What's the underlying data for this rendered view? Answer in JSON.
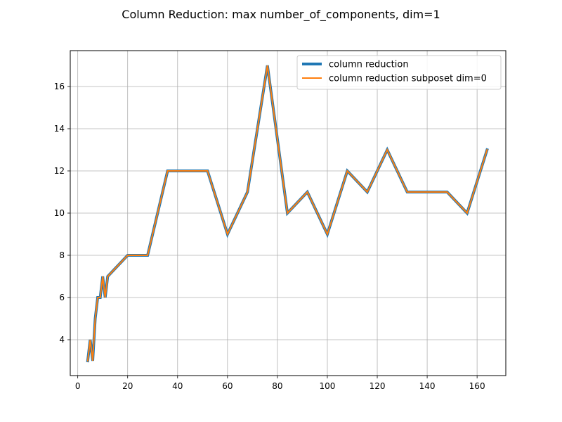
{
  "chart_data": {
    "type": "line",
    "title": "Column Reduction: max number_of_components, dim=1",
    "xlabel": "",
    "ylabel": "",
    "xlim": [
      -3.0,
      171.5
    ],
    "ylim": [
      2.3,
      17.7
    ],
    "xticks": [
      0,
      20,
      40,
      60,
      80,
      100,
      120,
      140,
      160
    ],
    "yticks": [
      4,
      6,
      8,
      10,
      12,
      14,
      16
    ],
    "grid": true,
    "legend": "top-right",
    "series": [
      {
        "name": "column reduction",
        "color": "#1f77b4",
        "x": [
          4,
          5,
          6,
          7,
          8,
          9,
          10,
          11,
          12,
          20,
          28,
          36,
          44,
          52,
          60,
          68,
          76,
          84,
          92,
          100,
          108,
          116,
          124,
          132,
          140,
          148,
          156,
          164
        ],
        "y": [
          3,
          4,
          3,
          5,
          6,
          6,
          7,
          6,
          7,
          8,
          8,
          12,
          12,
          12,
          9,
          11,
          17,
          10,
          11,
          9,
          12,
          11,
          13,
          11,
          11,
          11,
          10,
          13
        ]
      },
      {
        "name": "column reduction subposet dim=0",
        "color": "#ff7f0e",
        "x": [
          4,
          5,
          6,
          7,
          8,
          9,
          10,
          11,
          12,
          20,
          28,
          36,
          44,
          52,
          60,
          68,
          76,
          84,
          92,
          100,
          108,
          116,
          124,
          132,
          140,
          148,
          156,
          164
        ],
        "y": [
          3,
          4,
          3,
          5,
          6,
          6,
          7,
          6,
          7,
          8,
          8,
          12,
          12,
          12,
          9,
          11,
          17,
          10,
          11,
          9,
          12,
          11,
          13,
          11,
          11,
          11,
          10,
          13
        ]
      }
    ]
  }
}
